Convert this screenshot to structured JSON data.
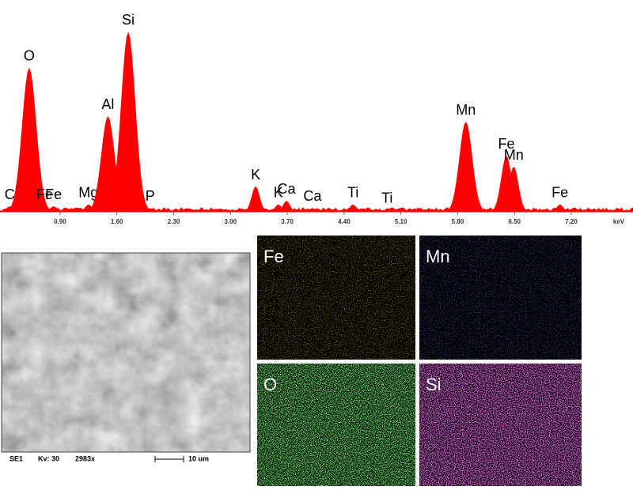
{
  "chart_data": {
    "type": "spectrum",
    "xlabel": "keV",
    "color": "#ff0000",
    "x": [
      0.28,
      0.52,
      0.71,
      0.82,
      1.25,
      1.49,
      1.74,
      2.01,
      3.31,
      3.59,
      3.69,
      4.01,
      4.51,
      4.93,
      5.9,
      6.4,
      6.49,
      7.06
    ],
    "values": [
      3,
      80,
      3,
      3,
      4,
      53,
      100,
      2,
      14,
      4,
      6,
      2,
      4,
      1,
      50,
      31,
      25,
      4
    ],
    "peak_labels": [
      "C",
      "O",
      "Fe",
      "Fe",
      "Mg",
      "Al",
      "Si",
      "P",
      "K",
      "K",
      "Ca",
      "Ca",
      "Ti",
      "Ti",
      "Mn",
      "Fe",
      "Mn",
      "Fe"
    ],
    "xlim": [
      0.16,
      7.96
    ],
    "ylim": [
      0,
      100
    ],
    "xticks": [
      {
        "value": 0.9,
        "label": "0.90"
      },
      {
        "value": 1.6,
        "label": "1.60"
      },
      {
        "value": 2.3,
        "label": "2.30"
      },
      {
        "value": 3.0,
        "label": "3.00"
      },
      {
        "value": 3.7,
        "label": "3.70"
      },
      {
        "value": 4.4,
        "label": "4.40"
      },
      {
        "value": 5.1,
        "label": "5.10"
      },
      {
        "value": 5.8,
        "label": "5.80"
      },
      {
        "value": 6.5,
        "label": "6.50"
      },
      {
        "value": 7.2,
        "label": "7.20"
      }
    ]
  },
  "sem": {
    "detector": "SE1",
    "voltage": "Kv: 30",
    "magnification": "2983x",
    "scale_bar": "10 um"
  },
  "maps": [
    {
      "label": "Fe",
      "color": "#c8b400"
    },
    {
      "label": "Mn",
      "color": "#2430ff"
    },
    {
      "label": "O",
      "color": "#22c822"
    },
    {
      "label": "Si",
      "color": "#d424d4"
    }
  ]
}
